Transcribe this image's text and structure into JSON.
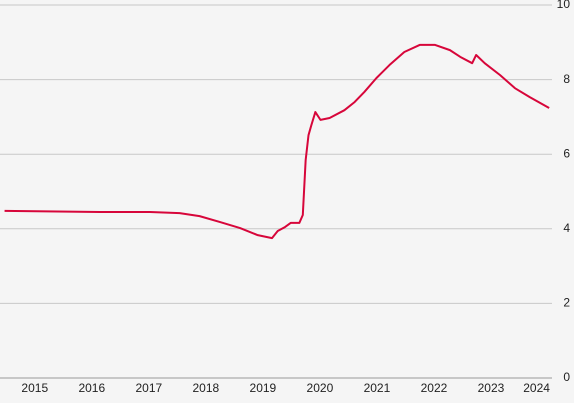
{
  "chart_data": {
    "type": "line",
    "x": [
      2014.97,
      2016.64,
      2017.52,
      2018.04,
      2018.39,
      2018.75,
      2019.1,
      2019.41,
      2019.66,
      2019.76,
      2019.89,
      2019.99,
      2020.14,
      2020.2,
      2020.25,
      2020.3,
      2020.35,
      2020.42,
      2020.51,
      2020.67,
      2020.93,
      2021.11,
      2021.28,
      2021.49,
      2021.72,
      2021.98,
      2022.25,
      2022.52,
      2022.78,
      2022.96,
      2023.17,
      2023.24,
      2023.39,
      2023.66,
      2023.92,
      2024.18,
      2024.52
    ],
    "series": [
      {
        "color": "#d7063a",
        "values": [
          4.48,
          4.45,
          4.45,
          4.42,
          4.34,
          4.18,
          4.02,
          3.83,
          3.75,
          3.94,
          4.05,
          4.16,
          4.16,
          4.37,
          5.84,
          6.51,
          6.78,
          7.13,
          6.92,
          6.97,
          7.18,
          7.4,
          7.67,
          8.04,
          8.39,
          8.74,
          8.93,
          8.93,
          8.79,
          8.61,
          8.44,
          8.66,
          8.44,
          8.12,
          7.77,
          7.53,
          7.24
        ]
      }
    ],
    "xlim": [
      2014.89,
      2024.57
    ],
    "xticks": [
      {
        "value": 2015.5,
        "label": "2015"
      },
      {
        "value": 2016.5,
        "label": "2016"
      },
      {
        "value": 2017.5,
        "label": "2017"
      },
      {
        "value": 2018.5,
        "label": "2018"
      },
      {
        "value": 2019.5,
        "label": "2019"
      },
      {
        "value": 2020.5,
        "label": "2020"
      },
      {
        "value": 2021.5,
        "label": "2021"
      },
      {
        "value": 2022.5,
        "label": "2022"
      },
      {
        "value": 2023.5,
        "label": "2023"
      },
      {
        "value": 2024.3,
        "label": "2024"
      }
    ],
    "ylim": [
      0,
      10
    ],
    "yticks": [
      0,
      2,
      4,
      6,
      8,
      10
    ],
    "grid": true
  }
}
